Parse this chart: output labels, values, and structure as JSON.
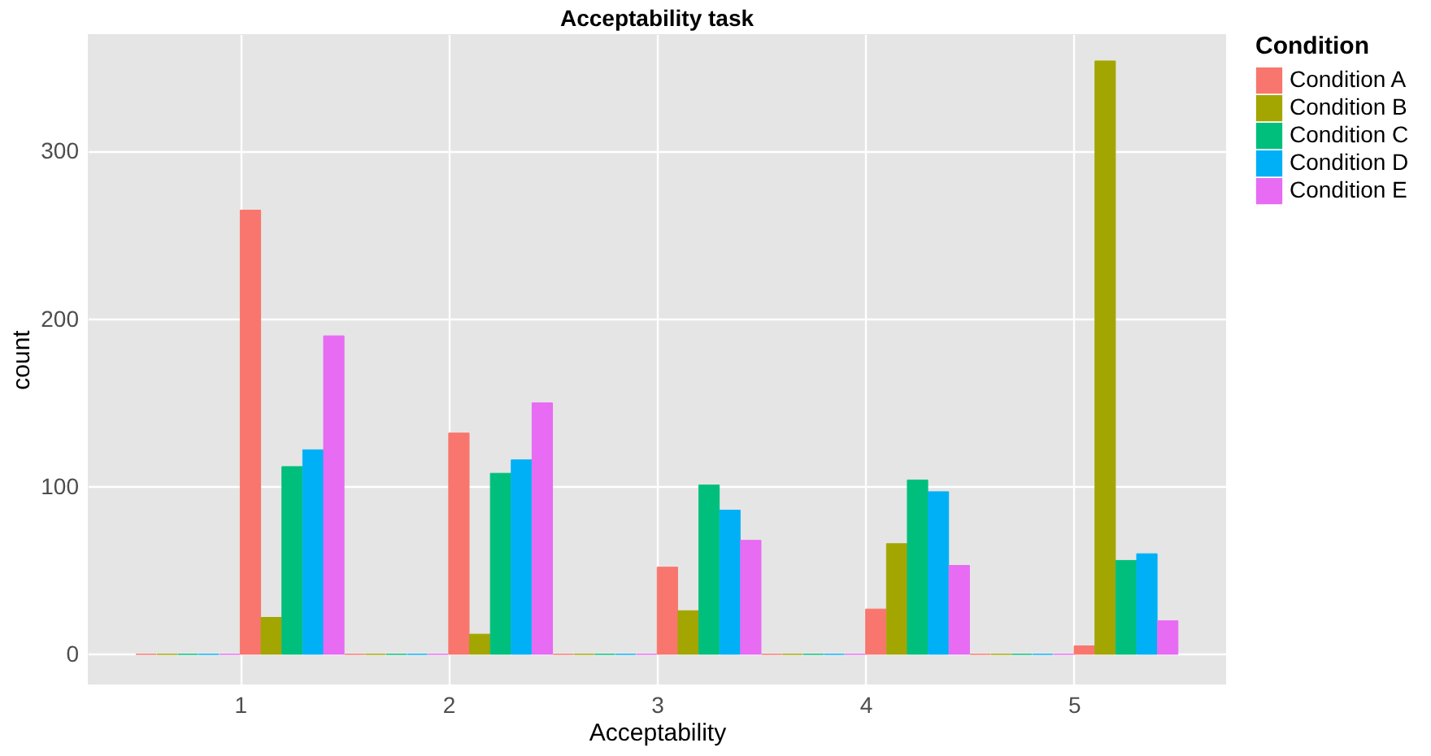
{
  "chart_data": {
    "type": "bar",
    "title": "Acceptability task",
    "xlabel": "Acceptability",
    "ylabel": "count",
    "legend_title": "Condition",
    "xlim": [
      0.27,
      5.73
    ],
    "xticks": [
      1,
      2,
      3,
      4,
      5
    ],
    "ylim": [
      -18,
      370
    ],
    "yticks": [
      0,
      100,
      200,
      300
    ],
    "grid": true,
    "legend": "right",
    "series": [
      {
        "name": "Condition A",
        "color": "#f8766d",
        "x": [
          0.55,
          1.05,
          1.55,
          2.05,
          2.55,
          3.05,
          3.55,
          4.05,
          4.55,
          5.05
        ],
        "values": [
          0,
          265,
          0,
          132,
          0,
          52,
          0,
          27,
          0,
          5
        ]
      },
      {
        "name": "Condition B",
        "color": "#a3a500",
        "x": [
          0.65,
          1.15,
          1.65,
          2.15,
          2.65,
          3.15,
          3.65,
          4.15,
          4.65,
          5.15
        ],
        "values": [
          0,
          22,
          0,
          12,
          0,
          26,
          0,
          66,
          0,
          354
        ]
      },
      {
        "name": "Condition C",
        "color": "#00bf7d",
        "x": [
          0.75,
          1.25,
          1.75,
          2.25,
          2.75,
          3.25,
          3.75,
          4.25,
          4.75,
          5.25
        ],
        "values": [
          0,
          112,
          0,
          108,
          0,
          101,
          0,
          104,
          0,
          56
        ]
      },
      {
        "name": "Condition D",
        "color": "#00b0f6",
        "x": [
          0.85,
          1.35,
          1.85,
          2.35,
          2.85,
          3.35,
          3.85,
          4.35,
          4.85,
          5.35
        ],
        "values": [
          0,
          122,
          0,
          116,
          0,
          86,
          0,
          97,
          0,
          60
        ]
      },
      {
        "name": "Condition E",
        "color": "#e76bf3",
        "x": [
          0.95,
          1.45,
          1.95,
          2.45,
          2.95,
          3.45,
          3.95,
          4.45,
          4.95,
          5.45
        ],
        "values": [
          0,
          190,
          0,
          150,
          0,
          68,
          0,
          53,
          0,
          20
        ]
      }
    ]
  }
}
